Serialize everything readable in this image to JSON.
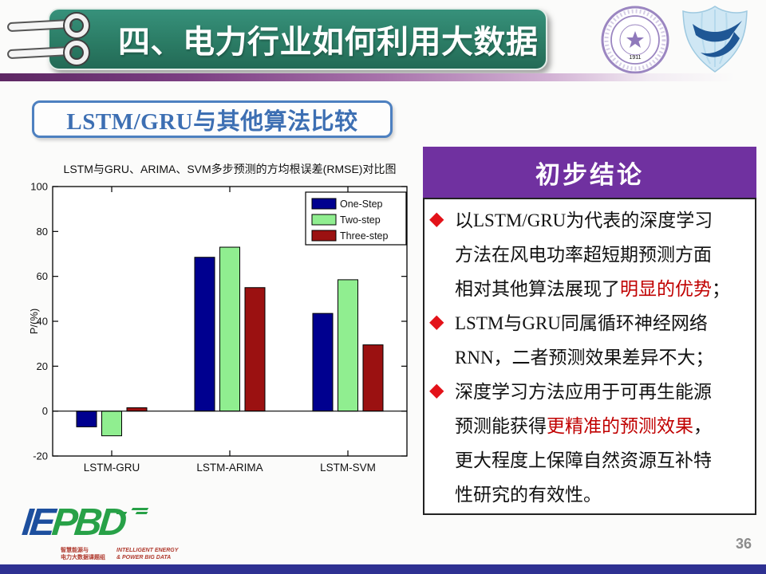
{
  "header": {
    "title": "四、电力行业如何利用大数据"
  },
  "logos": {
    "tsinghua_year": "1911"
  },
  "section": {
    "title": "LSTM/GRU与其他算法比较"
  },
  "chart_data": {
    "type": "bar",
    "title": "LSTM与GRU、ARIMA、SVM多步预测的方均根误差(RMSE)对比图",
    "ylabel": "P/(%)",
    "xlabel": "",
    "categories": [
      "LSTM-GRU",
      "LSTM-ARIMA",
      "LSTM-SVM"
    ],
    "series": [
      {
        "name": "One-Step",
        "color": "#00008f",
        "values": [
          -7,
          68.5,
          43.5
        ]
      },
      {
        "name": "Two-step",
        "color": "#90ee90",
        "values": [
          -11,
          73,
          58.5
        ]
      },
      {
        "name": "Three-step",
        "color": "#9b1111",
        "values": [
          1.5,
          55,
          29.5
        ]
      }
    ],
    "ylim": [
      -20,
      100
    ],
    "yticks": [
      -20,
      0,
      20,
      40,
      60,
      80,
      100
    ],
    "legend_position": "top-right",
    "grid": false
  },
  "conclusions": {
    "header": "初步结论",
    "bullets": [
      {
        "lines": [
          [
            {
              "text": "以LSTM/GRU为代表的深度学习",
              "em": false
            }
          ],
          [
            {
              "text": "方法在风电功率超短期预测方面",
              "em": false
            }
          ],
          [
            {
              "text": "相对其他算法展现了",
              "em": false
            },
            {
              "text": "明显的优势",
              "em": true
            },
            {
              "text": "；",
              "em": false
            }
          ]
        ]
      },
      {
        "lines": [
          [
            {
              "text": "LSTM与GRU同属循环神经网络",
              "em": false
            }
          ],
          [
            {
              "text": "RNN，二者预测效果差异不大；",
              "em": false
            }
          ]
        ]
      },
      {
        "lines": [
          [
            {
              "text": "深度学习方法应用于可再生能源",
              "em": false
            }
          ],
          [
            {
              "text": "预测能获得",
              "em": false
            },
            {
              "text": "更精准的预测效果",
              "em": true
            },
            {
              "text": "，",
              "em": false
            }
          ],
          [
            {
              "text": "更大程度上保障自然资源互补特",
              "em": false
            }
          ],
          [
            {
              "text": "性研究的有效性。",
              "em": false
            }
          ]
        ]
      }
    ]
  },
  "footer": {
    "logo": {
      "part_blue": "IE",
      "part_green": "PBD",
      "caption_cn": [
        "智慧能源与",
        "电力大数据课题组"
      ],
      "caption_en": [
        "INTELLIGENT ENERGY",
        "& POWER BIG DATA"
      ]
    },
    "page_number": "36"
  }
}
